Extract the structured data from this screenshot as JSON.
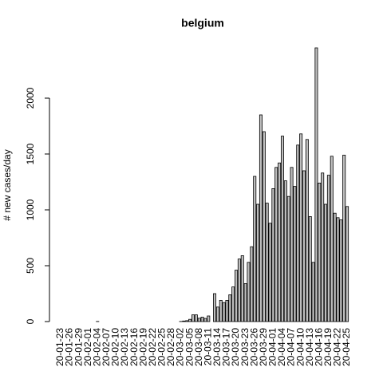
{
  "chart_data": {
    "type": "bar",
    "title": "belgium",
    "y_label": "# new cases/day",
    "categories": [
      "20-01-23",
      null,
      null,
      "20-01-26",
      null,
      null,
      "20-01-29",
      null,
      null,
      "20-02-01",
      null,
      null,
      "20-02-04",
      null,
      null,
      "20-02-07",
      null,
      null,
      "20-02-10",
      null,
      null,
      "20-02-13",
      null,
      null,
      "20-02-16",
      null,
      null,
      "20-02-19",
      null,
      null,
      "20-02-22",
      null,
      null,
      "20-02-25",
      null,
      null,
      "20-02-28",
      null,
      null,
      "20-03-02",
      null,
      null,
      "20-03-05",
      null,
      null,
      "20-03-08",
      null,
      null,
      "20-03-11",
      null,
      null,
      "20-03-14",
      null,
      null,
      "20-03-17",
      null,
      null,
      "20-03-20",
      null,
      null,
      "20-03-23",
      null,
      null,
      "20-03-26",
      null,
      null,
      "20-03-29",
      null,
      null,
      "20-04-01",
      null,
      null,
      "20-04-04",
      null,
      null,
      "20-04-07",
      null,
      null,
      "20-04-10",
      null,
      null,
      "20-04-13",
      null,
      null,
      "20-04-16",
      null,
      null,
      "20-04-19",
      null,
      null,
      "20-04-22",
      null,
      null,
      "20-04-25"
    ],
    "values": [
      0,
      0,
      0,
      0,
      0,
      0,
      0,
      0,
      0,
      0,
      0,
      0,
      1,
      0,
      0,
      0,
      0,
      0,
      0,
      0,
      0,
      0,
      0,
      0,
      0,
      0,
      0,
      0,
      0,
      0,
      0,
      0,
      0,
      0,
      0,
      0,
      0,
      0,
      0,
      1,
      5,
      8,
      20,
      60,
      60,
      30,
      40,
      28,
      50,
      0,
      250,
      130,
      190,
      170,
      190,
      240,
      310,
      460,
      560,
      590,
      340,
      530,
      670,
      1300,
      1050,
      1850,
      1700,
      1060,
      880,
      1190,
      1380,
      1420,
      1660,
      1260,
      1120,
      1380,
      1210,
      1580,
      1680,
      1350,
      1630,
      940,
      530,
      2450,
      1240,
      1330,
      1050,
      1310,
      1480,
      970,
      930,
      910,
      1490,
      1030
    ],
    "color": "#bebebe",
    "ylim": [
      0,
      2460
    ],
    "yticks": [
      0,
      500,
      1000,
      1500,
      2000
    ]
  }
}
